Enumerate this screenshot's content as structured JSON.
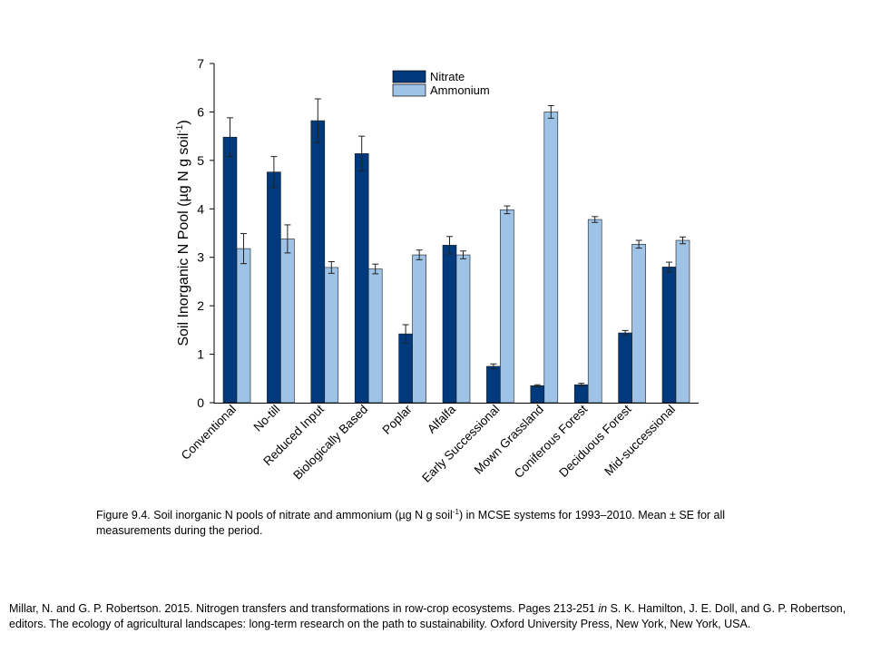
{
  "chart_data": {
    "type": "bar",
    "ylabel_main": "Soil Inorganic N Pool (µg N g soil",
    "ylabel_sup": "-1",
    "ylabel_end": ")",
    "ylim": [
      0,
      7
    ],
    "yticks": [
      "0",
      "1",
      "2",
      "3",
      "4",
      "5",
      "6",
      "7"
    ],
    "legend_position": "top-right",
    "categories": [
      "Conventional",
      "No-till",
      "Reduced Input",
      "Biologically Based",
      "Poplar",
      "Alfalfa",
      "Early Successional",
      "Mown Grassland",
      "Coniferous Forest",
      "Deciduous Forest",
      "Mid-successional"
    ],
    "series": [
      {
        "name": "Nitrate",
        "color": "#003a7d",
        "values": [
          5.48,
          4.76,
          5.82,
          5.14,
          1.42,
          3.25,
          0.75,
          0.35,
          0.37,
          1.44,
          2.8
        ],
        "errors": [
          0.4,
          0.32,
          0.45,
          0.36,
          0.19,
          0.18,
          0.05,
          0.02,
          0.03,
          0.05,
          0.1
        ]
      },
      {
        "name": "Ammonium",
        "color": "#9ec3e6",
        "values": [
          3.18,
          3.38,
          2.79,
          2.76,
          3.05,
          3.05,
          3.98,
          6.0,
          3.78,
          3.27,
          3.35
        ],
        "errors": [
          0.31,
          0.29,
          0.12,
          0.1,
          0.1,
          0.08,
          0.08,
          0.13,
          0.06,
          0.08,
          0.07
        ]
      }
    ]
  },
  "caption": {
    "prefix": "Figure 9.4. Soil inorganic N pools of nitrate and ammonium (µg N g soil",
    "sup": "-1",
    "suffix": ") in MCSE systems for 1993–2010.  Mean ± SE for all measurements during the period."
  },
  "citation": {
    "part1": "Millar, N. and G. P. Robertson. 2015. Nitrogen transfers and transformations in row-crop ecosystems. Pages 213-251 ",
    "in_word": "in",
    "part2": " S. K. Hamilton, J. E. Doll, and G. P. Robertson, editors. The ecology of agricultural landscapes: long-term research on the path to sustainability. Oxford University Press, New York, New York, USA."
  }
}
